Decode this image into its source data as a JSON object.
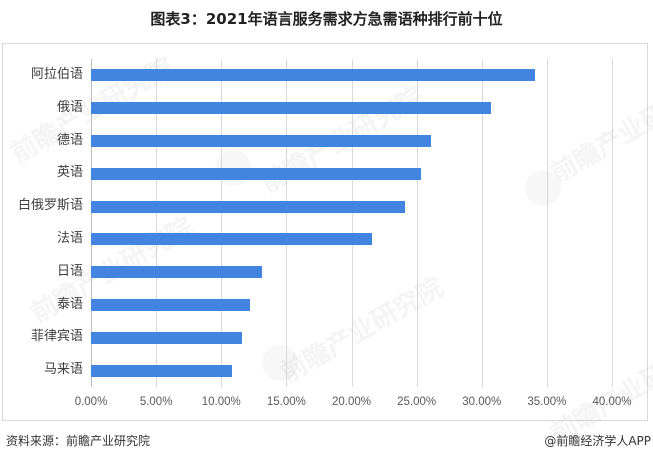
{
  "title": "图表3：2021年语言服务需求方急需语种排行前十位",
  "footer": {
    "source": "资料来源：前瞻产业研究院",
    "credit": "@前瞻经济学人APP"
  },
  "watermark_text": "前瞻产业研究院",
  "colors": {
    "bar": "#4285e0",
    "grid": "#d9d9d9",
    "border": "#d9d9d9"
  },
  "chart_data": {
    "type": "bar",
    "orientation": "horizontal",
    "title": "图表3：2021年语言服务需求方急需语种排行前十位",
    "xlabel": "",
    "ylabel": "",
    "categories": [
      "阿拉伯语",
      "俄语",
      "德语",
      "英语",
      "白俄罗斯语",
      "法语",
      "日语",
      "泰语",
      "菲律宾语",
      "马来语"
    ],
    "values": [
      34.1,
      30.7,
      26.1,
      25.3,
      24.1,
      21.6,
      13.1,
      12.2,
      11.6,
      10.8
    ],
    "unit": "%",
    "xlim": [
      0,
      40
    ],
    "x_ticks": [
      "0.00%",
      "5.00%",
      "10.00%",
      "15.00%",
      "20.00%",
      "25.00%",
      "30.00%",
      "35.00%",
      "40.00%"
    ],
    "grid": true,
    "legend": null
  }
}
